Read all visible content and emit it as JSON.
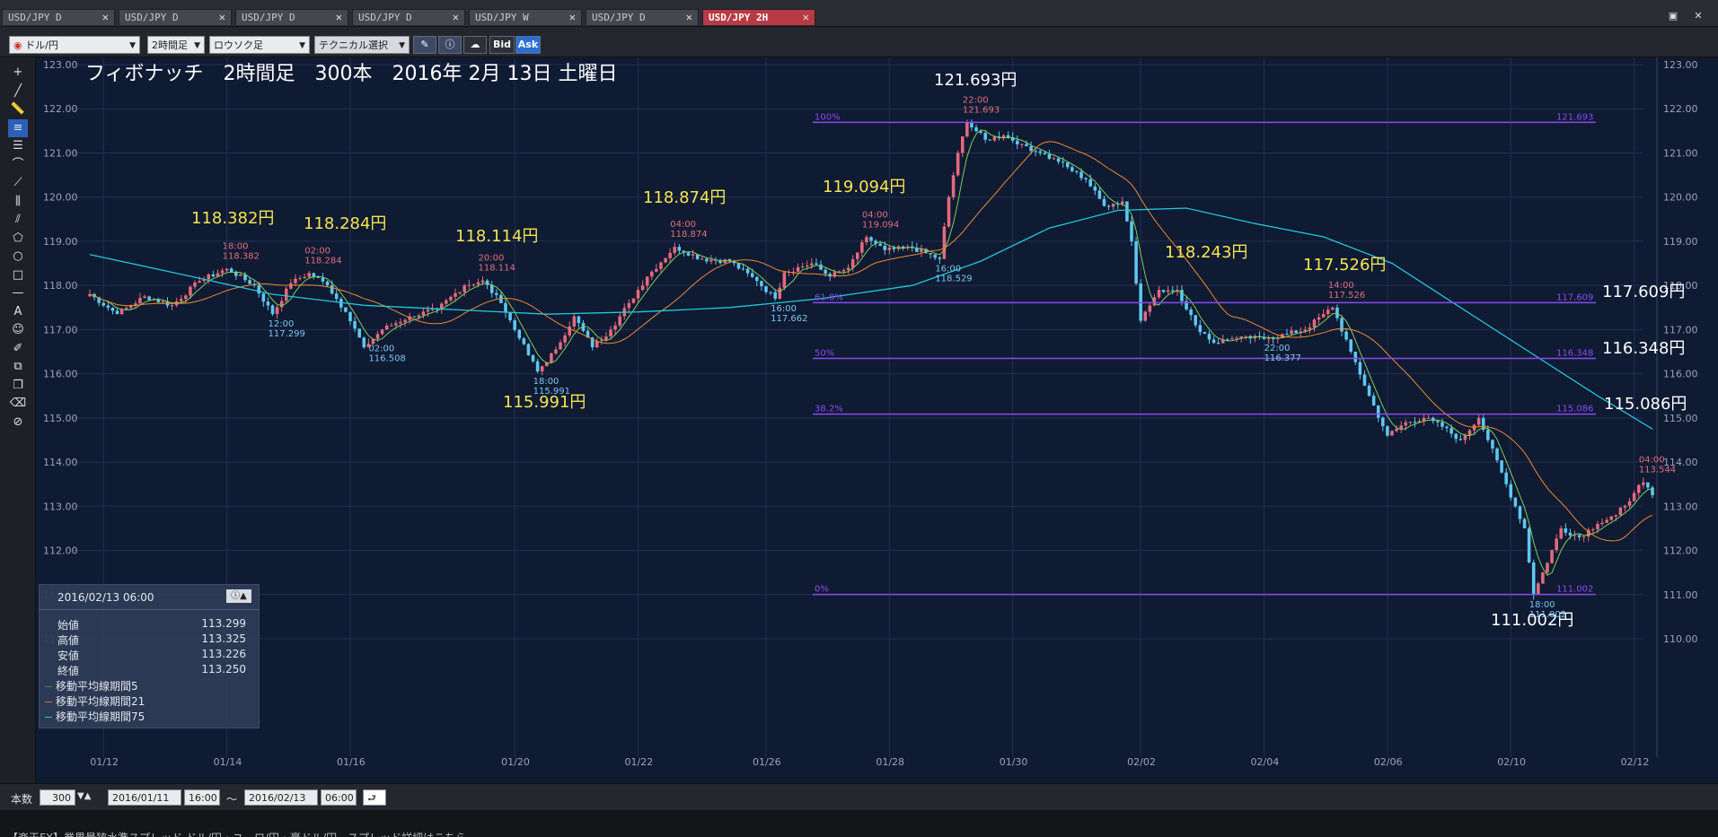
{
  "tabs": [
    {
      "label": "USD/JPY D",
      "active": false
    },
    {
      "label": "USD/JPY D",
      "active": false
    },
    {
      "label": "USD/JPY D",
      "active": false
    },
    {
      "label": "USD/JPY D",
      "active": false
    },
    {
      "label": "USD/JPY W",
      "active": false
    },
    {
      "label": "USD/JPY D",
      "active": false
    },
    {
      "label": "USD/JPY 2H",
      "active": true
    }
  ],
  "toolbar": {
    "pair": "ドル/円",
    "timeframe": "2時間足",
    "charttype": "ロウソク足",
    "technical": "テクニカル選択",
    "bid": "Bid",
    "ask": "Ask"
  },
  "tools": [
    "plus-icon",
    "line-icon",
    "ruler-icon",
    "hline-icon",
    "parallel-lines-icon",
    "arc-icon",
    "fan-icon",
    "vertical-lines-icon",
    "channel-icon",
    "pentagon-icon",
    "circle-icon",
    "square-icon",
    "dash-icon",
    "text-icon",
    "icon-stamp-icon",
    "brush-icon",
    "copy-icon",
    "layers-icon",
    "eraser-icon",
    "eraser-all-icon"
  ],
  "info": {
    "datetime": "2016/02/13 06:00",
    "rows": [
      {
        "label": "始値",
        "value": "113.299"
      },
      {
        "label": "高値",
        "value": "113.325"
      },
      {
        "label": "安値",
        "value": "113.226"
      },
      {
        "label": "終値",
        "value": "113.250"
      }
    ],
    "ma": [
      {
        "label": "移動平均線期間5",
        "color": "#3a8a3a"
      },
      {
        "label": "移動平均線期間21",
        "color": "#e07020"
      },
      {
        "label": "移動平均線期間75",
        "color": "#22c8d8"
      }
    ]
  },
  "bottom": {
    "count_label": "本数",
    "count": "300",
    "from_date": "2016/01/11",
    "from_time": "16:00",
    "tilde": "〜",
    "to_date": "2016/02/13",
    "to_time": "06:00"
  },
  "ticker": "【楽天FX】業界最狭水準スプレッド ドル/円・ユーロ/円・豪ドル/円…スプレッド詳細はこちら",
  "chart_data": {
    "type": "candlestick",
    "title": "フィボナッチ　2時間足　300本　2016年 2月 13日 土曜日",
    "ylim": [
      110.0,
      123.0
    ],
    "y_ticks": [
      "110.00",
      "111.00",
      "112.00",
      "113.00",
      "114.00",
      "115.00",
      "116.00",
      "117.00",
      "118.00",
      "119.00",
      "120.00",
      "121.00",
      "122.00",
      "123.00"
    ],
    "x_ticks": [
      "01/12",
      "01/14",
      "01/16",
      "01/20",
      "01/22",
      "01/26",
      "01/28",
      "01/30",
      "02/02",
      "02/04",
      "02/06",
      "02/10",
      "02/12"
    ],
    "ohlc_anchors": [
      [
        0,
        117.8
      ],
      [
        6,
        117.35
      ],
      [
        12,
        117.75
      ],
      [
        18,
        117.55
      ],
      [
        24,
        118.1
      ],
      [
        30,
        118.38
      ],
      [
        36,
        118.0
      ],
      [
        40,
        117.35
      ],
      [
        44,
        118.05
      ],
      [
        48,
        118.28
      ],
      [
        52,
        118.0
      ],
      [
        56,
        117.4
      ],
      [
        60,
        116.6
      ],
      [
        64,
        117.0
      ],
      [
        70,
        117.3
      ],
      [
        76,
        117.45
      ],
      [
        82,
        118.0
      ],
      [
        86,
        118.11
      ],
      [
        90,
        117.6
      ],
      [
        94,
        116.8
      ],
      [
        98,
        116.05
      ],
      [
        102,
        116.55
      ],
      [
        106,
        117.3
      ],
      [
        110,
        116.6
      ],
      [
        114,
        117.0
      ],
      [
        118,
        117.6
      ],
      [
        122,
        118.2
      ],
      [
        128,
        118.874
      ],
      [
        134,
        118.6
      ],
      [
        140,
        118.55
      ],
      [
        146,
        118.1
      ],
      [
        150,
        117.7
      ],
      [
        152,
        118.3
      ],
      [
        158,
        118.5
      ],
      [
        162,
        118.2
      ],
      [
        166,
        118.4
      ],
      [
        170,
        119.094
      ],
      [
        174,
        118.8
      ],
      [
        180,
        118.85
      ],
      [
        186,
        118.6
      ],
      [
        188,
        120.0
      ],
      [
        190,
        121.0
      ],
      [
        192,
        121.693
      ],
      [
        196,
        121.3
      ],
      [
        200,
        121.4
      ],
      [
        204,
        121.2
      ],
      [
        208,
        121.0
      ],
      [
        212,
        120.8
      ],
      [
        218,
        120.4
      ],
      [
        222,
        119.8
      ],
      [
        226,
        119.9
      ],
      [
        228,
        119.0
      ],
      [
        230,
        117.2
      ],
      [
        234,
        117.9
      ],
      [
        238,
        117.9
      ],
      [
        242,
        117.1
      ],
      [
        246,
        116.7
      ],
      [
        250,
        116.8
      ],
      [
        254,
        116.8
      ],
      [
        258,
        116.8
      ],
      [
        262,
        116.9
      ],
      [
        266,
        117.0
      ],
      [
        270,
        117.35
      ],
      [
        272,
        117.5
      ],
      [
        276,
        116.5
      ],
      [
        280,
        115.5
      ],
      [
        284,
        114.6
      ],
      [
        288,
        114.9
      ],
      [
        292,
        115.0
      ],
      [
        296,
        114.8
      ],
      [
        300,
        114.5
      ],
      [
        304,
        115.0
      ],
      [
        306,
        114.5
      ],
      [
        310,
        113.5
      ],
      [
        314,
        112.5
      ],
      [
        316,
        111.0
      ],
      [
        318,
        111.5
      ],
      [
        322,
        112.5
      ],
      [
        326,
        112.3
      ],
      [
        330,
        112.6
      ],
      [
        334,
        112.8
      ],
      [
        338,
        113.3
      ],
      [
        340,
        113.54
      ],
      [
        342,
        113.25
      ]
    ],
    "ma75_anchors": [
      [
        0,
        118.7
      ],
      [
        20,
        118.25
      ],
      [
        40,
        117.8
      ],
      [
        60,
        117.55
      ],
      [
        80,
        117.45
      ],
      [
        100,
        117.35
      ],
      [
        120,
        117.4
      ],
      [
        140,
        117.5
      ],
      [
        160,
        117.7
      ],
      [
        180,
        118.0
      ],
      [
        195,
        118.55
      ],
      [
        210,
        119.3
      ],
      [
        225,
        119.7
      ],
      [
        240,
        119.75
      ],
      [
        255,
        119.4
      ],
      [
        270,
        119.1
      ],
      [
        285,
        118.5
      ],
      [
        300,
        117.5
      ],
      [
        315,
        116.5
      ],
      [
        330,
        115.5
      ],
      [
        342,
        114.75
      ]
    ],
    "annotations": [
      {
        "text": "121.693円",
        "kind": "high"
      },
      {
        "text": "118.382円",
        "kind": "high"
      },
      {
        "text": "118.284円",
        "kind": "high"
      },
      {
        "text": "118.114円",
        "kind": "high"
      },
      {
        "text": "118.874円",
        "kind": "high"
      },
      {
        "text": "119.094円",
        "kind": "high"
      },
      {
        "text": "118.243円",
        "kind": "high"
      },
      {
        "text": "117.526円",
        "kind": "high"
      },
      {
        "text": "115.991円",
        "kind": "low"
      },
      {
        "text": "117.609円",
        "kind": "fib"
      },
      {
        "text": "116.348円",
        "kind": "fib"
      },
      {
        "text": "115.086円",
        "kind": "fib"
      },
      {
        "text": "111.002円",
        "kind": "fib"
      }
    ],
    "point_labels": [
      {
        "i": 30,
        "time": "18:00",
        "price": "118.382",
        "type": "high"
      },
      {
        "i": 48,
        "time": "02:00",
        "price": "118.284",
        "type": "high"
      },
      {
        "i": 86,
        "time": "20:00",
        "price": "118.114",
        "type": "high"
      },
      {
        "i": 128,
        "time": "04:00",
        "price": "118.874",
        "type": "high"
      },
      {
        "i": 170,
        "time": "04:00",
        "price": "119.094",
        "type": "high"
      },
      {
        "i": 192,
        "time": "22:00",
        "price": "121.693",
        "type": "high"
      },
      {
        "i": 272,
        "time": "14:00",
        "price": "117.526",
        "type": "high"
      },
      {
        "i": 340,
        "time": "04:00",
        "price": "113.544",
        "type": "high"
      },
      {
        "i": 40,
        "time": "12:00",
        "price": "117.299",
        "type": "low"
      },
      {
        "i": 62,
        "time": "02:00",
        "price": "116.508",
        "type": "low"
      },
      {
        "i": 98,
        "time": "18:00",
        "price": "115.991",
        "type": "low"
      },
      {
        "i": 150,
        "time": "16:00",
        "price": "117.662",
        "type": "low"
      },
      {
        "i": 186,
        "time": "16:00",
        "price": "118.529",
        "type": "low"
      },
      {
        "i": 258,
        "time": "22:00",
        "price": "116.377",
        "type": "low"
      },
      {
        "i": 316,
        "time": "18:00",
        "price": "111.002",
        "type": "low"
      }
    ],
    "fib_levels": [
      {
        "pct": "100%",
        "price": 121.693,
        "label": "121.693"
      },
      {
        "pct": "61.8%",
        "price": 117.609,
        "label": "117.609"
      },
      {
        "pct": "50%",
        "price": 116.348,
        "label": "116.348"
      },
      {
        "pct": "38.2%",
        "price": 115.086,
        "label": "115.086"
      },
      {
        "pct": "0%",
        "price": 111.002,
        "label": "111.002"
      }
    ],
    "colors": {
      "bg": "#0f1a33",
      "grid": "#223055",
      "up": "#e56a7c",
      "down": "#5ec8f0",
      "ma5": "#7ccf5a",
      "ma21": "#ef8a30",
      "ma75": "#22c8d8",
      "fib": "#8a4cf0",
      "yellow": "#f5e650",
      "white": "#ffffff",
      "hi_label": "#e0707c",
      "lo_label": "#7cc8ee"
    }
  }
}
